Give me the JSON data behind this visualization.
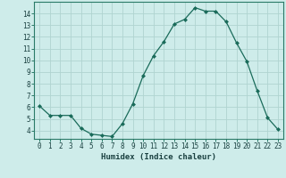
{
  "x": [
    0,
    1,
    2,
    3,
    4,
    5,
    6,
    7,
    8,
    9,
    10,
    11,
    12,
    13,
    14,
    15,
    16,
    17,
    18,
    19,
    20,
    21,
    22,
    23
  ],
  "y": [
    6.1,
    5.3,
    5.3,
    5.3,
    4.2,
    3.7,
    3.6,
    3.5,
    4.6,
    6.3,
    8.7,
    10.4,
    11.6,
    13.1,
    13.5,
    14.5,
    14.2,
    14.2,
    13.3,
    11.5,
    9.9,
    7.4,
    5.1,
    4.1
  ],
  "line_color": "#1a6b5a",
  "marker": "D",
  "marker_size": 2.0,
  "bg_color": "#ceecea",
  "grid_color": "#b0d4d0",
  "xlabel": "Humidex (Indice chaleur)",
  "xlim": [
    -0.5,
    23.5
  ],
  "ylim": [
    3.3,
    15.0
  ],
  "yticks": [
    4,
    5,
    6,
    7,
    8,
    9,
    10,
    11,
    12,
    13,
    14
  ],
  "xticks": [
    0,
    1,
    2,
    3,
    4,
    5,
    6,
    7,
    8,
    9,
    10,
    11,
    12,
    13,
    14,
    15,
    16,
    17,
    18,
    19,
    20,
    21,
    22,
    23
  ],
  "spine_color": "#2a7a68",
  "tick_color": "#1a4040",
  "label_color": "#1a4040",
  "tick_fontsize": 5.5,
  "xlabel_fontsize": 6.5
}
